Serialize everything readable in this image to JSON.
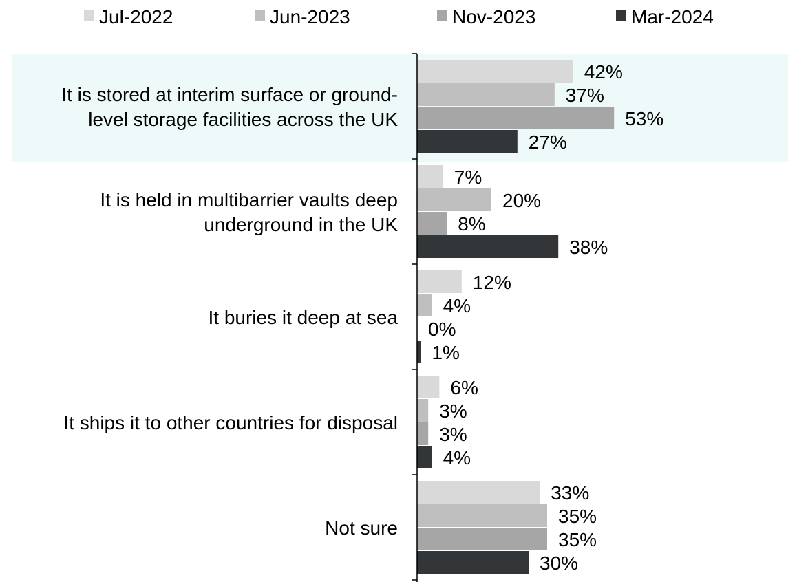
{
  "chart_data": {
    "type": "bar",
    "orientation": "horizontal",
    "categories": [
      [
        "It is stored at interim surface or ground-",
        "level storage facilities across the UK"
      ],
      [
        "It is held in multibarrier vaults deep",
        "underground in the UK"
      ],
      [
        "It buries it deep at sea"
      ],
      [
        "It ships it to other countries for disposal"
      ],
      [
        "Not sure"
      ]
    ],
    "series": [
      {
        "name": "Jul-2022",
        "color": "#d9d9d9",
        "values": [
          42,
          7,
          12,
          6,
          33
        ]
      },
      {
        "name": "Jun-2023",
        "color": "#bfbfbf",
        "values": [
          37,
          20,
          4,
          3,
          35
        ]
      },
      {
        "name": "Nov-2023",
        "color": "#a6a6a6",
        "values": [
          53,
          8,
          0,
          3,
          35
        ]
      },
      {
        "name": "Mar-2024",
        "color": "#333639",
        "values": [
          27,
          38,
          1,
          4,
          30
        ]
      }
    ],
    "value_suffix": "%",
    "xlim": [
      0,
      100
    ],
    "grid": false,
    "legend_position": "top",
    "highlight_category_index": 0,
    "highlight_color": "#eefafa"
  }
}
